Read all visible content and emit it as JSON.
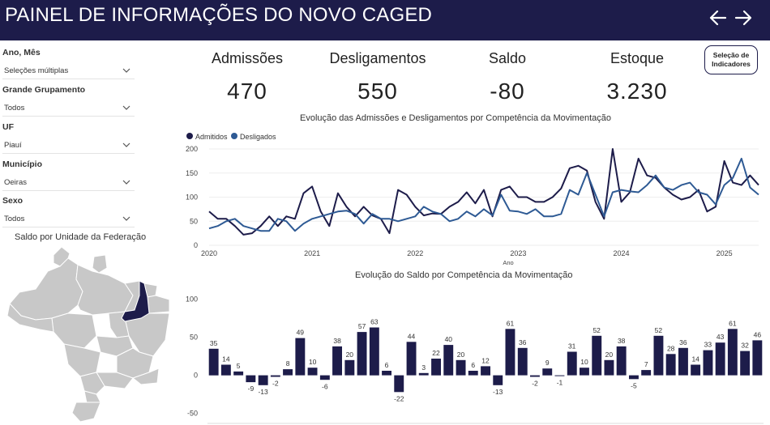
{
  "header": {
    "title": "PAINEL DE INFORMAÇÕES DO NOVO CAGED",
    "back_icon": "arrow-left-icon",
    "forward_icon": "arrow-right-icon",
    "bg_color": "#1d1c4a"
  },
  "filters": {
    "ano_mes": {
      "label": "Ano, Mês",
      "value": "Seleções múltiplas"
    },
    "grupamento": {
      "label": "Grande Grupamento",
      "value": "Todos"
    },
    "uf": {
      "label": "UF",
      "value": "Piauí"
    },
    "municipio": {
      "label": "Município",
      "value": "Oeiras"
    },
    "sexo": {
      "label": "Sexo",
      "value": "Todos"
    }
  },
  "map": {
    "title": "Saldo por Unidade da Federação",
    "highlighted_state": "Piauí",
    "highlight_color": "#1d1c4a",
    "base_color": "#c8c8c8"
  },
  "kpis": {
    "admissoes": {
      "label": "Admissões",
      "value": "470"
    },
    "desligamentos": {
      "label": "Desligamentos",
      "value": "550"
    },
    "saldo": {
      "label": "Saldo",
      "value": "-80"
    },
    "estoque": {
      "label": "Estoque",
      "value": "3.230"
    }
  },
  "selection_button": {
    "line1": "Seleção de",
    "line2": "Indicadores"
  },
  "chart_data": [
    {
      "type": "line",
      "title": "Evolução das Admissões e Desligamentos por Competência da Movimentação",
      "xlabel": "Ano",
      "ylabel": "",
      "legend_position": "top-left",
      "x_ticks": [
        "2020",
        "2021",
        "2022",
        "2023",
        "2024",
        "2025"
      ],
      "y_ticks": [
        0,
        50,
        100,
        150,
        200
      ],
      "ylim": [
        0,
        200
      ],
      "series": [
        {
          "name": "Admitidos",
          "color": "#1d1c4a",
          "values": [
            70,
            55,
            55,
            40,
            22,
            25,
            40,
            60,
            40,
            60,
            55,
            108,
            122,
            70,
            40,
            108,
            80,
            60,
            80,
            62,
            55,
            25,
            115,
            105,
            80,
            62,
            66,
            65,
            80,
            90,
            110,
            87,
            115,
            60,
            115,
            122,
            100,
            100,
            90,
            90,
            100,
            118,
            160,
            165,
            155,
            90,
            55,
            200,
            90,
            110,
            180,
            145,
            140,
            120,
            105,
            95,
            100,
            115,
            70,
            80,
            175,
            130,
            125,
            145,
            125
          ]
        },
        {
          "name": "Desligados",
          "color": "#2e5a94",
          "values": [
            35,
            40,
            50,
            55,
            40,
            35,
            30,
            30,
            55,
            50,
            30,
            45,
            55,
            60,
            65,
            70,
            72,
            65,
            45,
            65,
            55,
            55,
            50,
            55,
            60,
            80,
            70,
            65,
            50,
            55,
            70,
            60,
            75,
            62,
            105,
            72,
            70,
            65,
            75,
            60,
            60,
            65,
            115,
            105,
            150,
            105,
            60,
            110,
            115,
            112,
            110,
            125,
            145,
            120,
            115,
            125,
            130,
            110,
            105,
            85,
            125,
            140,
            180,
            120,
            105
          ]
        }
      ]
    },
    {
      "type": "bar",
      "title": "Evolução do Saldo por Competência da Movimentação",
      "xlabel": "",
      "ylabel": "",
      "y_ticks": [
        -50,
        0,
        50,
        100
      ],
      "ylim": [
        -60,
        105
      ],
      "color": "#1d1c4a",
      "values": [
        35,
        14,
        5,
        -9,
        -13,
        -2,
        8,
        49,
        10,
        -6,
        38,
        20,
        57,
        63,
        6,
        -22,
        44,
        3,
        22,
        40,
        20,
        6,
        12,
        -13,
        61,
        36,
        -2,
        9,
        -1,
        31,
        10,
        52,
        20,
        38,
        -5,
        7,
        52,
        28,
        36,
        14,
        33,
        43,
        61,
        32,
        46
      ]
    }
  ]
}
